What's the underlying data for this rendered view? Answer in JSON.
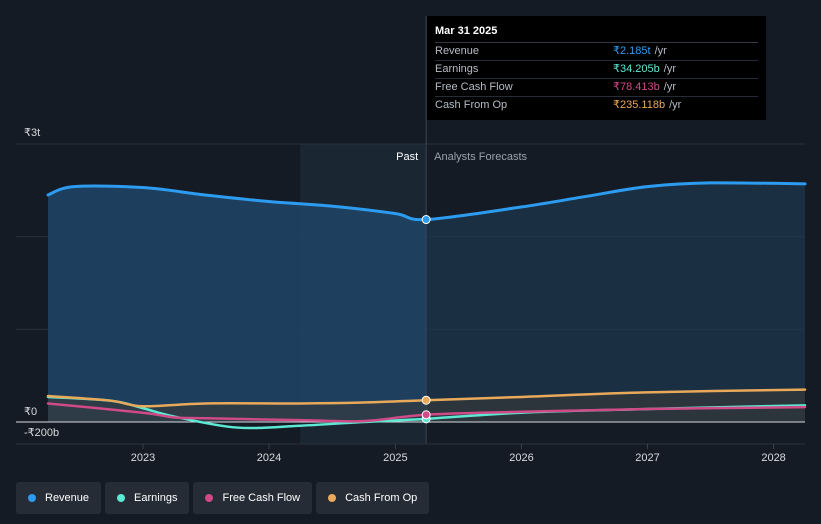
{
  "chart_data": {
    "type": "area",
    "currency_unit": "trillion INR",
    "y_ticks": [
      {
        "value": 3,
        "label": "₹3t"
      },
      {
        "value": 0,
        "label": "₹0"
      },
      {
        "value": -0.2,
        "label": "-₹200b"
      }
    ],
    "ylim": [
      -0.2,
      3
    ],
    "x_ticks": [
      "2023",
      "2024",
      "2025",
      "2026",
      "2027",
      "2028"
    ],
    "xlim": [
      "2022-04-01",
      "2028-04-01"
    ],
    "divider_date": "2025-03-31",
    "past_label": "Past",
    "forecast_label": "Analysts Forecasts",
    "series": [
      {
        "name": "Revenue",
        "color": "#2d9cf0",
        "fill": true,
        "points": [
          [
            "2022-04-01",
            2.45
          ],
          [
            "2022-06-15",
            2.54
          ],
          [
            "2022-12-31",
            2.53
          ],
          [
            "2023-06-30",
            2.45
          ],
          [
            "2023-12-31",
            2.38
          ],
          [
            "2024-06-30",
            2.33
          ],
          [
            "2024-12-31",
            2.25
          ],
          [
            "2025-03-31",
            2.185
          ],
          [
            "2025-12-31",
            2.32
          ],
          [
            "2026-06-30",
            2.43
          ],
          [
            "2026-12-31",
            2.54
          ],
          [
            "2027-06-30",
            2.58
          ],
          [
            "2028-04-01",
            2.57
          ]
        ]
      },
      {
        "name": "Earnings",
        "color": "#5ce8d2",
        "fill": false,
        "points": [
          [
            "2022-04-01",
            0.27
          ],
          [
            "2022-09-30",
            0.23
          ],
          [
            "2022-12-31",
            0.15
          ],
          [
            "2023-03-31",
            0.06
          ],
          [
            "2023-09-30",
            -0.06
          ],
          [
            "2024-03-31",
            -0.04
          ],
          [
            "2024-09-30",
            0.0
          ],
          [
            "2025-03-31",
            0.034
          ],
          [
            "2025-12-31",
            0.1
          ],
          [
            "2026-12-31",
            0.14
          ],
          [
            "2028-04-01",
            0.18
          ]
        ]
      },
      {
        "name": "Free Cash Flow",
        "color": "#cf4a86",
        "fill": false,
        "points": [
          [
            "2022-04-01",
            0.2
          ],
          [
            "2022-12-31",
            0.1
          ],
          [
            "2023-03-31",
            0.05
          ],
          [
            "2023-06-30",
            0.04
          ],
          [
            "2024-03-31",
            0.02
          ],
          [
            "2024-09-30",
            0.01
          ],
          [
            "2025-03-31",
            0.078
          ],
          [
            "2025-12-31",
            0.11
          ],
          [
            "2026-12-31",
            0.14
          ],
          [
            "2028-04-01",
            0.16
          ]
        ]
      },
      {
        "name": "Cash From Op",
        "color": "#e9a95b",
        "fill": false,
        "points": [
          [
            "2022-04-01",
            0.28
          ],
          [
            "2022-09-30",
            0.23
          ],
          [
            "2022-12-31",
            0.17
          ],
          [
            "2023-06-30",
            0.2
          ],
          [
            "2024-03-31",
            0.2
          ],
          [
            "2024-09-30",
            0.21
          ],
          [
            "2025-03-31",
            0.235
          ],
          [
            "2025-12-31",
            0.27
          ],
          [
            "2026-12-31",
            0.32
          ],
          [
            "2028-04-01",
            0.35
          ]
        ]
      }
    ]
  },
  "tooltip": {
    "date": "Mar 31 2025",
    "unit": "/yr",
    "rows": [
      {
        "label": "Revenue",
        "value": "₹2.185t",
        "color": "#2d9cf0"
      },
      {
        "label": "Earnings",
        "value": "₹34.205b",
        "color": "#5ce8d2"
      },
      {
        "label": "Free Cash Flow",
        "value": "₹78.413b",
        "color": "#cf4a86"
      },
      {
        "label": "Cash From Op",
        "value": "₹235.118b",
        "color": "#e9a95b"
      }
    ]
  },
  "legend": [
    {
      "label": "Revenue",
      "color": "#2d9cf0"
    },
    {
      "label": "Earnings",
      "color": "#5ce8d2"
    },
    {
      "label": "Free Cash Flow",
      "color": "#cf4a86"
    },
    {
      "label": "Cash From Op",
      "color": "#e9a95b"
    }
  ]
}
